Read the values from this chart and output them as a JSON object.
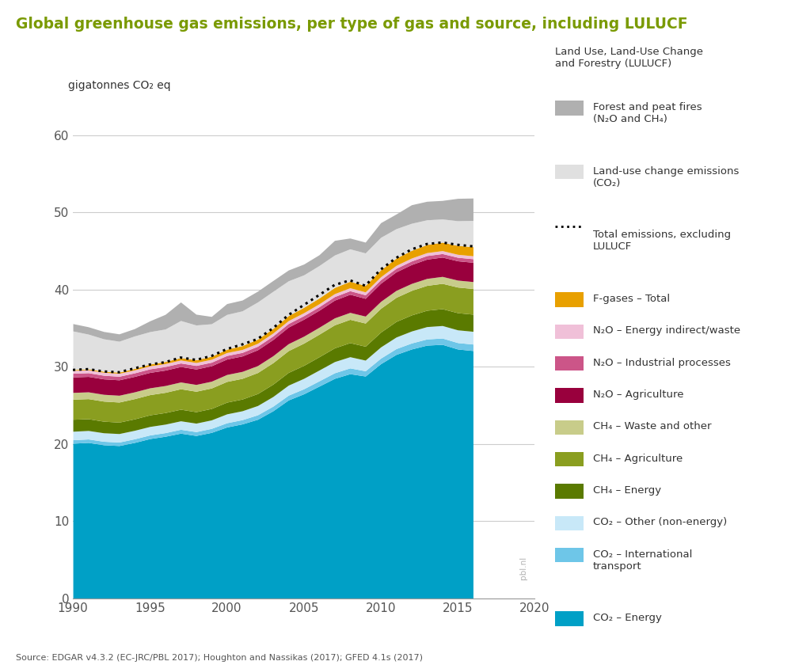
{
  "title": "Global greenhouse gas emissions, per type of gas and source, including LULUCF",
  "ylabel": "gigatonnes CO₂ eq",
  "source": "Source: EDGAR v4.3.2 (EC-JRC/PBL 2017); Houghton and Nassikas (2017); GFED 4.1s (2017)",
  "watermark": "pbl.nl",
  "title_color": "#7a9a01",
  "background_color": "#ffffff",
  "years": [
    1990,
    1991,
    1992,
    1993,
    1994,
    1995,
    1996,
    1997,
    1998,
    1999,
    2000,
    2001,
    2002,
    2003,
    2004,
    2005,
    2006,
    2007,
    2008,
    2009,
    2010,
    2011,
    2012,
    2013,
    2014,
    2015,
    2016
  ],
  "series": {
    "co2_energy": [
      20.1,
      20.2,
      19.9,
      19.8,
      20.2,
      20.7,
      21.0,
      21.4,
      21.1,
      21.5,
      22.2,
      22.6,
      23.2,
      24.3,
      25.7,
      26.5,
      27.5,
      28.5,
      29.1,
      28.8,
      30.4,
      31.6,
      32.3,
      32.8,
      32.9,
      32.3,
      32.1
    ],
    "co2_intl_transport": [
      0.45,
      0.45,
      0.45,
      0.45,
      0.47,
      0.47,
      0.47,
      0.5,
      0.5,
      0.52,
      0.55,
      0.55,
      0.58,
      0.6,
      0.62,
      0.65,
      0.68,
      0.72,
      0.75,
      0.68,
      0.72,
      0.75,
      0.78,
      0.8,
      0.82,
      0.83,
      0.84
    ],
    "co2_other": [
      1.1,
      1.1,
      1.1,
      1.1,
      1.1,
      1.1,
      1.1,
      1.1,
      1.1,
      1.1,
      1.15,
      1.15,
      1.2,
      1.25,
      1.3,
      1.35,
      1.4,
      1.45,
      1.45,
      1.38,
      1.45,
      1.5,
      1.55,
      1.6,
      1.62,
      1.65,
      1.65
    ],
    "ch4_energy": [
      1.55,
      1.52,
      1.5,
      1.48,
      1.48,
      1.5,
      1.5,
      1.5,
      1.48,
      1.48,
      1.52,
      1.52,
      1.55,
      1.6,
      1.65,
      1.68,
      1.72,
      1.78,
      1.82,
      1.8,
      1.92,
      2.02,
      2.08,
      2.12,
      2.18,
      2.22,
      2.22
    ],
    "ch4_agriculture": [
      2.6,
      2.6,
      2.6,
      2.6,
      2.62,
      2.62,
      2.62,
      2.65,
      2.65,
      2.65,
      2.68,
      2.68,
      2.72,
      2.78,
      2.82,
      2.88,
      2.92,
      2.98,
      3.02,
      3.0,
      3.08,
      3.12,
      3.18,
      3.22,
      3.28,
      3.32,
      3.32
    ],
    "ch4_waste": [
      0.88,
      0.88,
      0.88,
      0.88,
      0.88,
      0.88,
      0.88,
      0.88,
      0.88,
      0.88,
      0.9,
      0.9,
      0.9,
      0.9,
      0.9,
      0.9,
      0.9,
      0.9,
      0.9,
      0.9,
      0.9,
      0.9,
      0.9,
      0.9,
      0.9,
      0.9,
      0.9
    ],
    "n2o_agriculture": [
      2.0,
      2.0,
      2.0,
      2.0,
      2.0,
      2.0,
      2.0,
      2.0,
      2.0,
      2.0,
      2.0,
      2.0,
      2.05,
      2.1,
      2.15,
      2.2,
      2.2,
      2.3,
      2.35,
      2.3,
      2.35,
      2.4,
      2.45,
      2.5,
      2.5,
      2.5,
      2.5
    ],
    "n2o_industrial": [
      0.48,
      0.48,
      0.47,
      0.46,
      0.46,
      0.46,
      0.46,
      0.46,
      0.46,
      0.46,
      0.46,
      0.46,
      0.46,
      0.46,
      0.46,
      0.46,
      0.46,
      0.46,
      0.46,
      0.46,
      0.46,
      0.46,
      0.46,
      0.46,
      0.46,
      0.46,
      0.46
    ],
    "n2o_energy_waste": [
      0.38,
      0.38,
      0.38,
      0.38,
      0.38,
      0.38,
      0.38,
      0.38,
      0.38,
      0.38,
      0.38,
      0.38,
      0.38,
      0.38,
      0.38,
      0.38,
      0.38,
      0.38,
      0.38,
      0.38,
      0.38,
      0.38,
      0.38,
      0.38,
      0.38,
      0.38,
      0.38
    ],
    "fgases": [
      0.1,
      0.12,
      0.14,
      0.16,
      0.2,
      0.24,
      0.28,
      0.32,
      0.36,
      0.4,
      0.44,
      0.5,
      0.55,
      0.6,
      0.65,
      0.7,
      0.75,
      0.8,
      0.84,
      0.84,
      0.9,
      0.95,
      1.0,
      1.05,
      1.1,
      1.15,
      1.18
    ],
    "lulucf_co2": [
      5.0,
      4.5,
      4.2,
      4.0,
      4.2,
      4.2,
      4.2,
      4.8,
      4.5,
      4.2,
      4.5,
      4.5,
      4.8,
      4.8,
      4.5,
      4.2,
      4.2,
      4.2,
      4.2,
      4.2,
      4.2,
      3.8,
      3.5,
      3.2,
      3.0,
      3.2,
      3.4
    ],
    "lulucf_fires": [
      0.95,
      0.95,
      0.95,
      0.95,
      0.95,
      1.4,
      1.9,
      2.4,
      1.4,
      0.95,
      1.4,
      1.4,
      1.4,
      1.4,
      1.4,
      1.4,
      1.4,
      1.9,
      1.4,
      1.4,
      1.9,
      1.9,
      2.4,
      2.4,
      2.4,
      2.9,
      2.9
    ]
  },
  "dotted_line": {
    "label": "Total emissions, excluding LULUCF",
    "values": [
      29.6,
      29.7,
      29.4,
      29.3,
      29.8,
      30.3,
      30.6,
      31.2,
      30.9,
      31.4,
      32.3,
      32.9,
      33.6,
      35.0,
      36.7,
      38.0,
      39.3,
      40.6,
      41.2,
      40.5,
      42.6,
      44.1,
      45.2,
      45.9,
      46.1,
      45.8,
      45.6
    ],
    "color": "#000000"
  },
  "colors": {
    "co2_energy": "#00a0c6",
    "co2_intl_transport": "#6ec6e8",
    "co2_other": "#c8e8f8",
    "ch4_energy": "#5a7a00",
    "ch4_agriculture": "#8a9e20",
    "ch4_waste": "#c8cc8a",
    "n2o_agriculture": "#99003d",
    "n2o_industrial": "#cc5588",
    "n2o_energy_waste": "#f0c0d8",
    "fgases": "#e8a000",
    "lulucf_co2": "#e0e0e0",
    "lulucf_fires": "#b0b0b0"
  },
  "legend_labels": {
    "lulucf_fires": "Forest and peat fires\n(N₂O and CH₄)",
    "lulucf_co2": "Land-use change emissions\n(CO₂)",
    "fgases": "F-gases – Total",
    "n2o_energy_waste": "N₂O – Energy indirect/waste",
    "n2o_industrial": "N₂O – Industrial processes",
    "n2o_agriculture": "N₂O – Agriculture",
    "ch4_waste": "CH₄ – Waste and other",
    "ch4_agriculture": "CH₄ – Agriculture",
    "ch4_energy": "CH₄ – Energy",
    "co2_other": "CO₂ – Other (non-energy)",
    "co2_intl_transport": "CO₂ – International\ntransport",
    "co2_energy": "CO₂ – Energy"
  },
  "legend_header": "Land Use, Land-Use Change\nand Forestry (LULUCF)",
  "dotted_legend_label": "Total emissions, excluding\nLULUCF",
  "ylim": [
    0,
    62
  ],
  "yticks": [
    0,
    10,
    20,
    30,
    40,
    50,
    60
  ],
  "xlim": [
    1990,
    2020
  ],
  "xticks": [
    1990,
    1995,
    2000,
    2005,
    2010,
    2015,
    2020
  ]
}
